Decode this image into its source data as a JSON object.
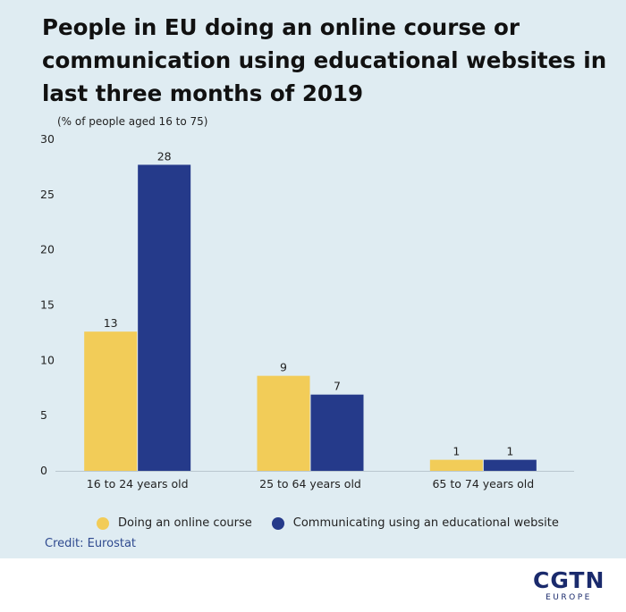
{
  "title": "People in EU doing an online course or communication using educational websites in last three months of 2019",
  "unit_note": "(% of people aged 16 to 75)",
  "credit": "Credit: Eurostat",
  "logo": {
    "main": "CGTN",
    "sub": "EUROPE"
  },
  "colors": {
    "background": "#dfecf2",
    "online_course": "#f2cc58",
    "educational_website": "#253a8a",
    "axis": "#b9c7cf"
  },
  "chart_data": {
    "type": "bar",
    "title": "People in EU doing an online course or communication using educational websites in last three months of 2019",
    "ylabel": "(% of people aged 16 to 75)",
    "xlabel": "",
    "categories": [
      "16 to 24 years old",
      "25 to 64 years old",
      "65 to 74 years old"
    ],
    "series": [
      {
        "name": "Doing an online course",
        "values": [
          13,
          9,
          1
        ],
        "plot_values": [
          12.6,
          8.6,
          1.0
        ],
        "color": "#f2cc58"
      },
      {
        "name": "Communicating using an educational website",
        "values": [
          28,
          7,
          1
        ],
        "plot_values": [
          27.7,
          6.9,
          1.0
        ],
        "color": "#253a8a"
      }
    ],
    "ylim": [
      0,
      30
    ],
    "yticks": [
      0,
      5,
      10,
      15,
      20,
      25,
      30
    ],
    "grid": false,
    "legend": "bottom"
  }
}
